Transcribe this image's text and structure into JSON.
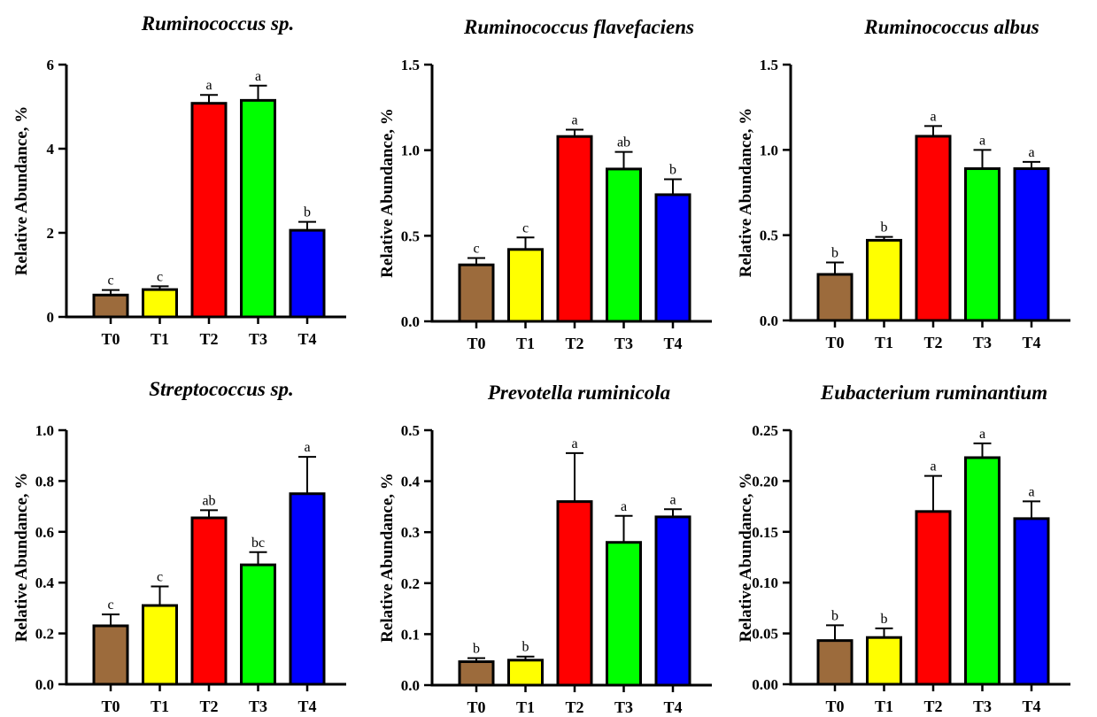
{
  "chart_data": [
    {
      "type": "bar",
      "title": "Ruminococcus sp.",
      "ylabel": "Relative Abundance, %",
      "categories": [
        "T0",
        "T1",
        "T2",
        "T3",
        "T4"
      ],
      "values": [
        0.52,
        0.65,
        5.08,
        5.15,
        2.06
      ],
      "errors": [
        0.12,
        0.08,
        0.2,
        0.35,
        0.2
      ],
      "letters": [
        "c",
        "c",
        "a",
        "a",
        "b"
      ],
      "colors": [
        "#9C6B3C",
        "#FFFF00",
        "#FF0000",
        "#00FF00",
        "#0000FF"
      ],
      "ylim": [
        0,
        6
      ],
      "yticks": [
        "0",
        "2",
        "4",
        "6"
      ],
      "ytick_values": [
        0,
        2,
        4,
        6
      ]
    },
    {
      "type": "bar",
      "title": "Ruminococcus flavefaciens",
      "ylabel": "Relative Abundance, %",
      "categories": [
        "T0",
        "T1",
        "T2",
        "T3",
        "T4"
      ],
      "values": [
        0.33,
        0.42,
        1.08,
        0.89,
        0.74
      ],
      "errors": [
        0.04,
        0.07,
        0.04,
        0.1,
        0.09
      ],
      "letters": [
        "c",
        "c",
        "a",
        "ab",
        "b"
      ],
      "colors": [
        "#9C6B3C",
        "#FFFF00",
        "#FF0000",
        "#00FF00",
        "#0000FF"
      ],
      "ylim": [
        0,
        1.5
      ],
      "yticks": [
        "0.0",
        "0.5",
        "1.0",
        "1.5"
      ],
      "ytick_values": [
        0,
        0.5,
        1.0,
        1.5
      ]
    },
    {
      "type": "bar",
      "title": "Ruminococcus albus",
      "ylabel": "Relative Abundance, %",
      "categories": [
        "T0",
        "T1",
        "T2",
        "T3",
        "T4"
      ],
      "values": [
        0.27,
        0.47,
        1.08,
        0.89,
        0.89
      ],
      "errors": [
        0.07,
        0.02,
        0.06,
        0.11,
        0.04
      ],
      "letters": [
        "b",
        "b",
        "a",
        "a",
        "a"
      ],
      "colors": [
        "#9C6B3C",
        "#FFFF00",
        "#FF0000",
        "#00FF00",
        "#0000FF"
      ],
      "ylim": [
        0,
        1.5
      ],
      "yticks": [
        "0.0",
        "0.5",
        "1.0",
        "1.5"
      ],
      "ytick_values": [
        0,
        0.5,
        1.0,
        1.5
      ]
    },
    {
      "type": "bar",
      "title": "Streptococcus sp.",
      "ylabel": "Relative Abundance, %",
      "categories": [
        "T0",
        "T1",
        "T2",
        "T3",
        "T4"
      ],
      "values": [
        0.23,
        0.31,
        0.655,
        0.47,
        0.75
      ],
      "errors": [
        0.045,
        0.075,
        0.03,
        0.05,
        0.145
      ],
      "letters": [
        "c",
        "c",
        "ab",
        "bc",
        "a"
      ],
      "colors": [
        "#9C6B3C",
        "#FFFF00",
        "#FF0000",
        "#00FF00",
        "#0000FF"
      ],
      "ylim": [
        0,
        1.0
      ],
      "yticks": [
        "0.0",
        "0.2",
        "0.4",
        "0.6",
        "0.8",
        "1.0"
      ],
      "ytick_values": [
        0,
        0.2,
        0.4,
        0.6,
        0.8,
        1.0
      ]
    },
    {
      "type": "bar",
      "title": "Prevotella ruminicola",
      "ylabel": "Relative Abundance, %",
      "categories": [
        "T0",
        "T1",
        "T2",
        "T3",
        "T4"
      ],
      "values": [
        0.046,
        0.049,
        0.36,
        0.28,
        0.33
      ],
      "errors": [
        0.007,
        0.007,
        0.095,
        0.052,
        0.015
      ],
      "letters": [
        "b",
        "b",
        "a",
        "a",
        "a"
      ],
      "colors": [
        "#9C6B3C",
        "#FFFF00",
        "#FF0000",
        "#00FF00",
        "#0000FF"
      ],
      "ylim": [
        0,
        0.5
      ],
      "yticks": [
        "0.0",
        "0.1",
        "0.2",
        "0.3",
        "0.4",
        "0.5"
      ],
      "ytick_values": [
        0,
        0.1,
        0.2,
        0.3,
        0.4,
        0.5
      ]
    },
    {
      "type": "bar",
      "title": "Eubacterium ruminantium",
      "ylabel": "Relative Abundance, %",
      "categories": [
        "T0",
        "T1",
        "T2",
        "T3",
        "T4"
      ],
      "values": [
        0.043,
        0.046,
        0.17,
        0.223,
        0.163
      ],
      "errors": [
        0.015,
        0.009,
        0.035,
        0.014,
        0.017
      ],
      "letters": [
        "b",
        "b",
        "a",
        "a",
        "a"
      ],
      "colors": [
        "#9C6B3C",
        "#FFFF00",
        "#FF0000",
        "#00FF00",
        "#0000FF"
      ],
      "ylim": [
        0,
        0.25
      ],
      "yticks": [
        "0.00",
        "0.05",
        "0.10",
        "0.15",
        "0.20",
        "0.25"
      ],
      "ytick_values": [
        0,
        0.05,
        0.1,
        0.15,
        0.2,
        0.25
      ]
    }
  ]
}
